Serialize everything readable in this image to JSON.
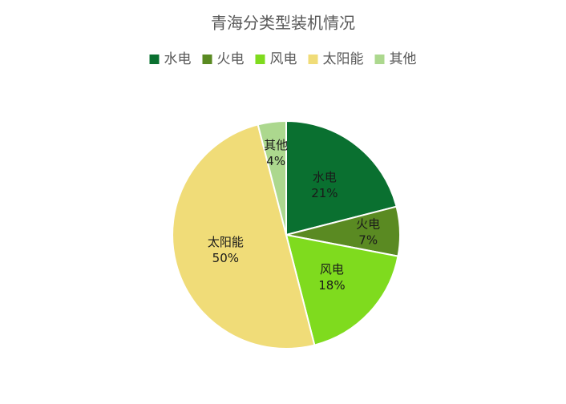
{
  "chart_data": {
    "type": "pie",
    "title": "青海分类型装机情况",
    "categories": [
      "水电",
      "火电",
      "风电",
      "太阳能",
      "其他"
    ],
    "values": [
      21,
      7,
      18,
      50,
      4
    ],
    "value_labels": [
      "21%",
      "7%",
      "18%",
      "50%",
      "4%"
    ],
    "colors": [
      "#0a7030",
      "#5a8a22",
      "#7fdb1e",
      "#f0dc78",
      "#acd88e"
    ],
    "legend": "top"
  }
}
